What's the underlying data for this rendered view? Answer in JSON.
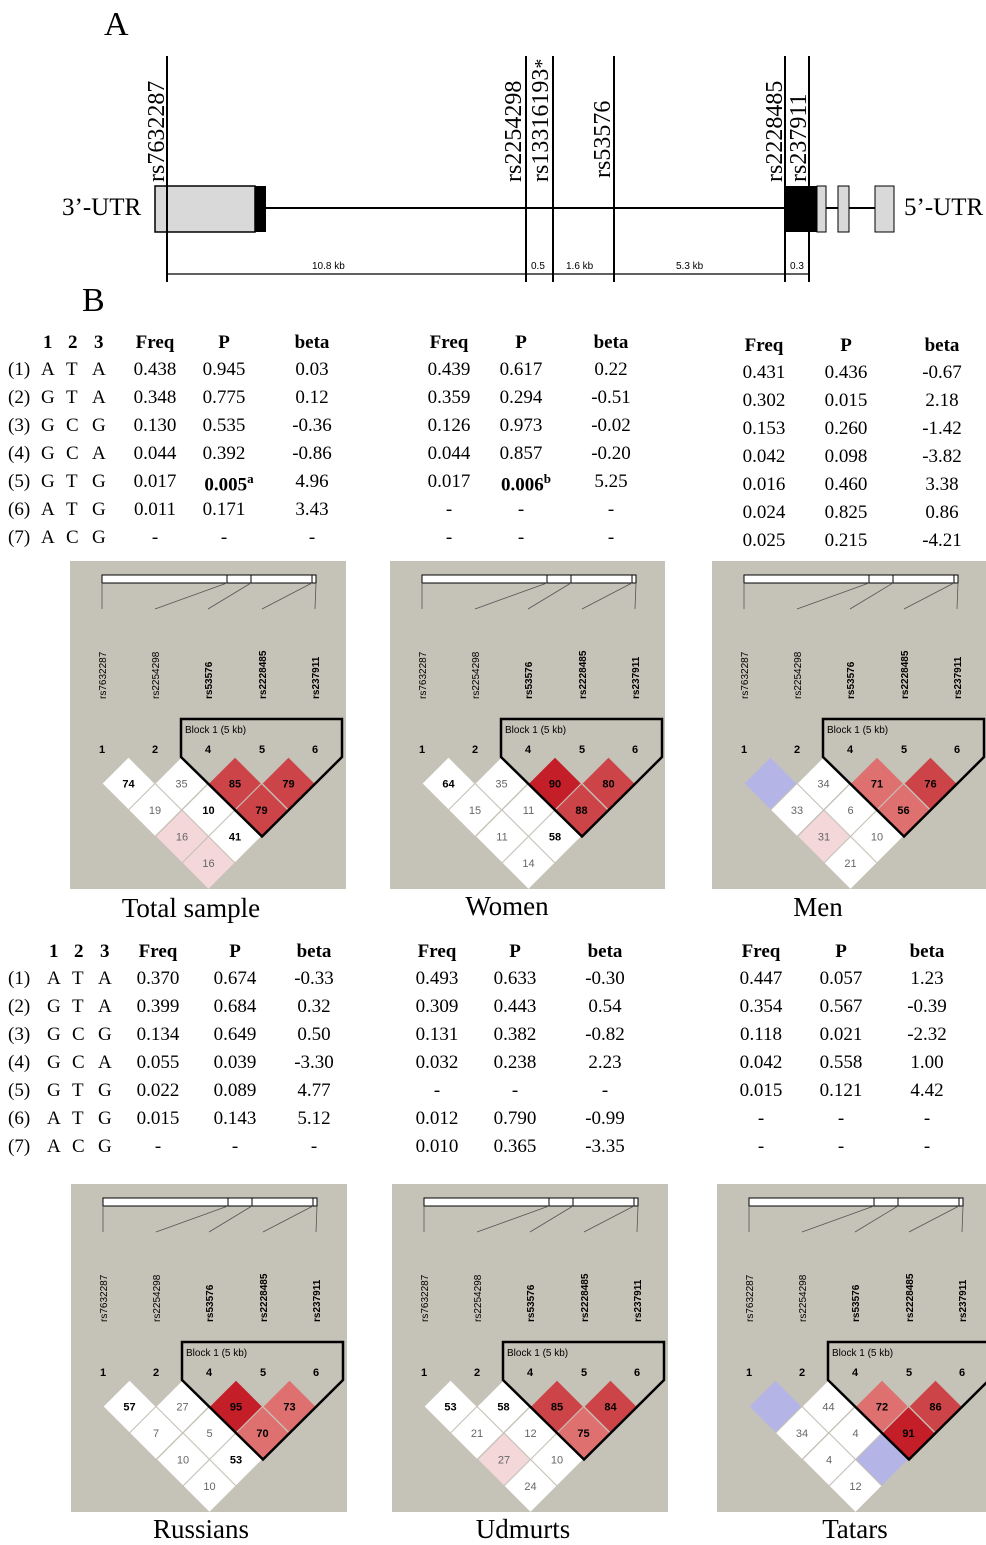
{
  "panel_a": {
    "letter": "A",
    "utr3": "3’-UTR",
    "utr5": "5’-UTR",
    "snps": [
      {
        "id": "rs7632287",
        "star": ""
      },
      {
        "id": "rs2254298",
        "star": ""
      },
      {
        "id": "rs13316193",
        "star": "*"
      },
      {
        "id": "rs53576",
        "star": ""
      },
      {
        "id": "rs2228485",
        "star": ""
      },
      {
        "id": "rs237911",
        "star": ""
      }
    ],
    "distances": [
      "10.8 kb",
      "0.5",
      "1.6 kb",
      "5.3 kb",
      "0.3"
    ]
  },
  "panel_b": {
    "letter": "B",
    "allele_header": [
      "1",
      "2",
      "3"
    ],
    "stat_header": [
      "Freq",
      "P",
      "beta"
    ],
    "haplotypes": [
      {
        "num": "(1)",
        "alleles": [
          "A",
          "T",
          "A"
        ]
      },
      {
        "num": "(2)",
        "alleles": [
          "G",
          "T",
          "A"
        ]
      },
      {
        "num": "(3)",
        "alleles": [
          "G",
          "C",
          "G"
        ]
      },
      {
        "num": "(4)",
        "alleles": [
          "G",
          "C",
          "A"
        ]
      },
      {
        "num": "(5)",
        "alleles": [
          "G",
          "T",
          "G"
        ]
      },
      {
        "num": "(6)",
        "alleles": [
          "A",
          "T",
          "G"
        ]
      },
      {
        "num": "(7)",
        "alleles": [
          "A",
          "C",
          "G"
        ]
      }
    ],
    "tables": [
      {
        "group": "Total sample",
        "rows": [
          [
            "0.438",
            "0.945",
            "0.03"
          ],
          [
            "0.348",
            "0.775",
            "0.12"
          ],
          [
            "0.130",
            "0.535",
            "-0.36"
          ],
          [
            "0.044",
            "0.392",
            "-0.86"
          ],
          [
            "0.017",
            "0.005",
            "4.96"
          ],
          [
            "0.011",
            "0.171",
            "3.43"
          ],
          [
            "-",
            "-",
            "-"
          ]
        ],
        "bold_p": {
          "row": 4,
          "sup": "a"
        }
      },
      {
        "group": "Women",
        "rows": [
          [
            "0.439",
            "0.617",
            "0.22"
          ],
          [
            "0.359",
            "0.294",
            "-0.51"
          ],
          [
            "0.126",
            "0.973",
            "-0.02"
          ],
          [
            "0.044",
            "0.857",
            "-0.20"
          ],
          [
            "0.017",
            "0.006",
            "5.25"
          ],
          [
            "-",
            "-",
            "-"
          ],
          [
            "-",
            "-",
            "-"
          ]
        ],
        "bold_p": {
          "row": 4,
          "sup": "b"
        }
      },
      {
        "group": "Men",
        "rows": [
          [
            "0.431",
            "0.436",
            "-0.67"
          ],
          [
            "0.302",
            "0.015",
            "2.18"
          ],
          [
            "0.153",
            "0.260",
            "-1.42"
          ],
          [
            "0.042",
            "0.098",
            "-3.82"
          ],
          [
            "0.016",
            "0.460",
            "3.38"
          ],
          [
            "0.024",
            "0.825",
            "0.86"
          ],
          [
            "0.025",
            "0.215",
            "-4.21"
          ]
        ]
      },
      {
        "group": "Russians",
        "rows": [
          [
            "0.370",
            "0.674",
            "-0.33"
          ],
          [
            "0.399",
            "0.684",
            "0.32"
          ],
          [
            "0.134",
            "0.649",
            "0.50"
          ],
          [
            "0.055",
            "0.039",
            "-3.30"
          ],
          [
            "0.022",
            "0.089",
            "4.77"
          ],
          [
            "0.015",
            "0.143",
            "5.12"
          ],
          [
            "-",
            "-",
            "-"
          ]
        ]
      },
      {
        "group": "Udmurts",
        "rows": [
          [
            "0.493",
            "0.633",
            "-0.30"
          ],
          [
            "0.309",
            "0.443",
            "0.54"
          ],
          [
            "0.131",
            "0.382",
            "-0.82"
          ],
          [
            "0.032",
            "0.238",
            "2.23"
          ],
          [
            "-",
            "-",
            "-"
          ],
          [
            "0.012",
            "0.790",
            "-0.99"
          ],
          [
            "0.010",
            "0.365",
            "-3.35"
          ]
        ]
      },
      {
        "group": "Tatars",
        "rows": [
          [
            "0.447",
            "0.057",
            "1.23"
          ],
          [
            "0.354",
            "0.567",
            "-0.39"
          ],
          [
            "0.118",
            "0.021",
            "-2.32"
          ],
          [
            "0.042",
            "0.558",
            "1.00"
          ],
          [
            "0.015",
            "0.121",
            "4.42"
          ],
          [
            "-",
            "-",
            "-"
          ],
          [
            "-",
            "-",
            "-"
          ]
        ]
      }
    ],
    "ld_plots": {
      "markers": [
        "rs7632287",
        "rs2254298",
        "rs53576",
        "rs2228485",
        "rs237911"
      ],
      "bold_markers": [
        false,
        false,
        true,
        true,
        true
      ],
      "marker_numbers": [
        "1",
        "2",
        "4",
        "5",
        "6"
      ],
      "block_label": "Block 1 (5 kb)",
      "colors": {
        "background": "#c5c2b8",
        "white": "#ffffff",
        "light_pink": "#f3d7d9",
        "medium_red": "#df7070",
        "dark_red": "#cd4448",
        "strong_red": "#c41e28",
        "blue": "#b4b4e6"
      },
      "plots": [
        {
          "caption": "Total sample",
          "cells": [
            {
              "v": "74",
              "c": "white",
              "bold": true
            },
            {
              "v": "35",
              "c": "white"
            },
            {
              "v": "85",
              "c": "dark_red",
              "bold": true
            },
            {
              "v": "79",
              "c": "dark_red",
              "bold": true
            },
            {
              "v": "19",
              "c": "white"
            },
            {
              "v": "10",
              "c": "white",
              "bold": true
            },
            {
              "v": "79",
              "c": "dark_red",
              "bold": true
            },
            {
              "v": "16",
              "c": "light_pink"
            },
            {
              "v": "41",
              "c": "white",
              "bold": true
            },
            {
              "v": "16",
              "c": "light_pink"
            }
          ]
        },
        {
          "caption": "Women",
          "cells": [
            {
              "v": "64",
              "c": "white",
              "bold": true
            },
            {
              "v": "35",
              "c": "white"
            },
            {
              "v": "90",
              "c": "strong_red",
              "bold": true
            },
            {
              "v": "80",
              "c": "dark_red",
              "bold": true
            },
            {
              "v": "15",
              "c": "white"
            },
            {
              "v": "11",
              "c": "white"
            },
            {
              "v": "88",
              "c": "dark_red",
              "bold": true
            },
            {
              "v": "11",
              "c": "white"
            },
            {
              "v": "58",
              "c": "white",
              "bold": true
            },
            {
              "v": "14",
              "c": "white"
            }
          ]
        },
        {
          "caption": "Men",
          "cells": [
            {
              "v": "",
              "c": "blue"
            },
            {
              "v": "34",
              "c": "white"
            },
            {
              "v": "71",
              "c": "medium_red",
              "bold": true
            },
            {
              "v": "76",
              "c": "dark_red",
              "bold": true
            },
            {
              "v": "33",
              "c": "white"
            },
            {
              "v": "6",
              "c": "white"
            },
            {
              "v": "56",
              "c": "medium_red",
              "bold": true
            },
            {
              "v": "31",
              "c": "light_pink"
            },
            {
              "v": "10",
              "c": "white"
            },
            {
              "v": "21",
              "c": "white"
            }
          ]
        },
        {
          "caption": "Russians",
          "cells": [
            {
              "v": "57",
              "c": "white",
              "bold": true
            },
            {
              "v": "27",
              "c": "white"
            },
            {
              "v": "95",
              "c": "strong_red",
              "bold": true
            },
            {
              "v": "73",
              "c": "medium_red",
              "bold": true
            },
            {
              "v": "7",
              "c": "white"
            },
            {
              "v": "5",
              "c": "white"
            },
            {
              "v": "70",
              "c": "medium_red",
              "bold": true
            },
            {
              "v": "10",
              "c": "white"
            },
            {
              "v": "53",
              "c": "white",
              "bold": true
            },
            {
              "v": "10",
              "c": "white"
            }
          ]
        },
        {
          "caption": "Udmurts",
          "cells": [
            {
              "v": "53",
              "c": "white",
              "bold": true
            },
            {
              "v": "58",
              "c": "white",
              "bold": true
            },
            {
              "v": "85",
              "c": "dark_red",
              "bold": true
            },
            {
              "v": "84",
              "c": "dark_red",
              "bold": true
            },
            {
              "v": "21",
              "c": "white"
            },
            {
              "v": "12",
              "c": "white"
            },
            {
              "v": "75",
              "c": "medium_red",
              "bold": true
            },
            {
              "v": "27",
              "c": "light_pink"
            },
            {
              "v": "10",
              "c": "white"
            },
            {
              "v": "24",
              "c": "white"
            }
          ]
        },
        {
          "caption": "Tatars",
          "cells": [
            {
              "v": "",
              "c": "blue"
            },
            {
              "v": "44",
              "c": "white"
            },
            {
              "v": "72",
              "c": "medium_red",
              "bold": true
            },
            {
              "v": "86",
              "c": "dark_red",
              "bold": true
            },
            {
              "v": "34",
              "c": "white"
            },
            {
              "v": "4",
              "c": "white"
            },
            {
              "v": "91",
              "c": "strong_red",
              "bold": true
            },
            {
              "v": "4",
              "c": "white"
            },
            {
              "v": "",
              "c": "blue"
            },
            {
              "v": "12",
              "c": "white"
            }
          ]
        }
      ]
    }
  }
}
